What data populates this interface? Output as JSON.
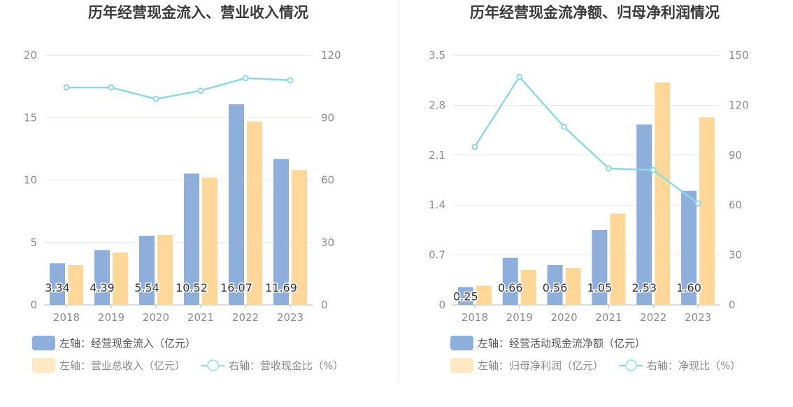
{
  "colors": {
    "blue": "#8eaedc",
    "orange": "#ffd899",
    "line": "#8fd8e0",
    "grid": "#e3e6ef",
    "axis": "#b9b9b9",
    "tick": "#8c8c8c"
  },
  "charts": [
    {
      "title": "历年经营现金流入、营业收入情况",
      "legend": {
        "bar1": "左轴：经营现金流入（亿元）",
        "bar2": "左轴：营业总收入（亿元）",
        "line": "右轴：营收现金比（%）"
      }
    },
    {
      "title": "历年经营现金流净额、归母净利润情况",
      "legend": {
        "bar1": "左轴：经营活动现金流净额（亿元）",
        "bar2": "左轴：归母净利润（亿元）",
        "line": "右轴：净现比（%）"
      }
    }
  ],
  "chart_data": [
    {
      "type": "bar",
      "categories": [
        "2018",
        "2019",
        "2020",
        "2021",
        "2022",
        "2023"
      ],
      "title": "历年经营现金流入、营业收入情况",
      "ylim_left": [
        0,
        20
      ],
      "yticks_left": [
        "0",
        "5",
        "10",
        "15",
        "20"
      ],
      "ylim_right": [
        0,
        120
      ],
      "yticks_right": [
        "0",
        "30",
        "60",
        "90",
        "120"
      ],
      "series": [
        {
          "name": "左轴：经营现金流入（亿元）",
          "axis": "left",
          "kind": "bar",
          "values": [
            3.34,
            4.39,
            5.54,
            10.52,
            16.07,
            11.69
          ],
          "labels": [
            "3.34",
            "4.39",
            "5.54",
            "10.52",
            "16.07",
            "11.69"
          ]
        },
        {
          "name": "左轴：营业总收入（亿元）",
          "axis": "left",
          "kind": "bar",
          "values": [
            3.2,
            4.2,
            5.6,
            10.2,
            14.7,
            10.8
          ]
        },
        {
          "name": "右轴：营收现金比（%）",
          "axis": "right",
          "kind": "line",
          "values": [
            104.5,
            104.5,
            99,
            103,
            109,
            108
          ]
        }
      ],
      "grid": true,
      "legend_position": "bottom-left"
    },
    {
      "type": "bar",
      "categories": [
        "2018",
        "2019",
        "2020",
        "2021",
        "2022",
        "2023"
      ],
      "title": "历年经营现金流净额、归母净利润情况",
      "ylim_left": [
        0,
        3.5
      ],
      "yticks_left": [
        "0",
        "0.7",
        "1.4",
        "2.1",
        "2.8",
        "3.5"
      ],
      "ylim_right": [
        0,
        150
      ],
      "yticks_right": [
        "0",
        "30",
        "60",
        "90",
        "120",
        "150"
      ],
      "series": [
        {
          "name": "左轴：经营活动现金流净额（亿元）",
          "axis": "left",
          "kind": "bar",
          "values": [
            0.25,
            0.66,
            0.56,
            1.05,
            2.53,
            1.6
          ],
          "labels": [
            "0.25",
            "0.66",
            "0.56",
            "1.05",
            "2.53",
            "1.60"
          ]
        },
        {
          "name": "左轴：归母净利润（亿元）",
          "axis": "left",
          "kind": "bar",
          "values": [
            0.27,
            0.49,
            0.52,
            1.28,
            3.12,
            2.63
          ]
        },
        {
          "name": "右轴：净现比（%）",
          "axis": "right",
          "kind": "line",
          "values": [
            95,
            137,
            107,
            82,
            81,
            61
          ]
        }
      ],
      "grid": true,
      "legend_position": "bottom-left"
    }
  ]
}
